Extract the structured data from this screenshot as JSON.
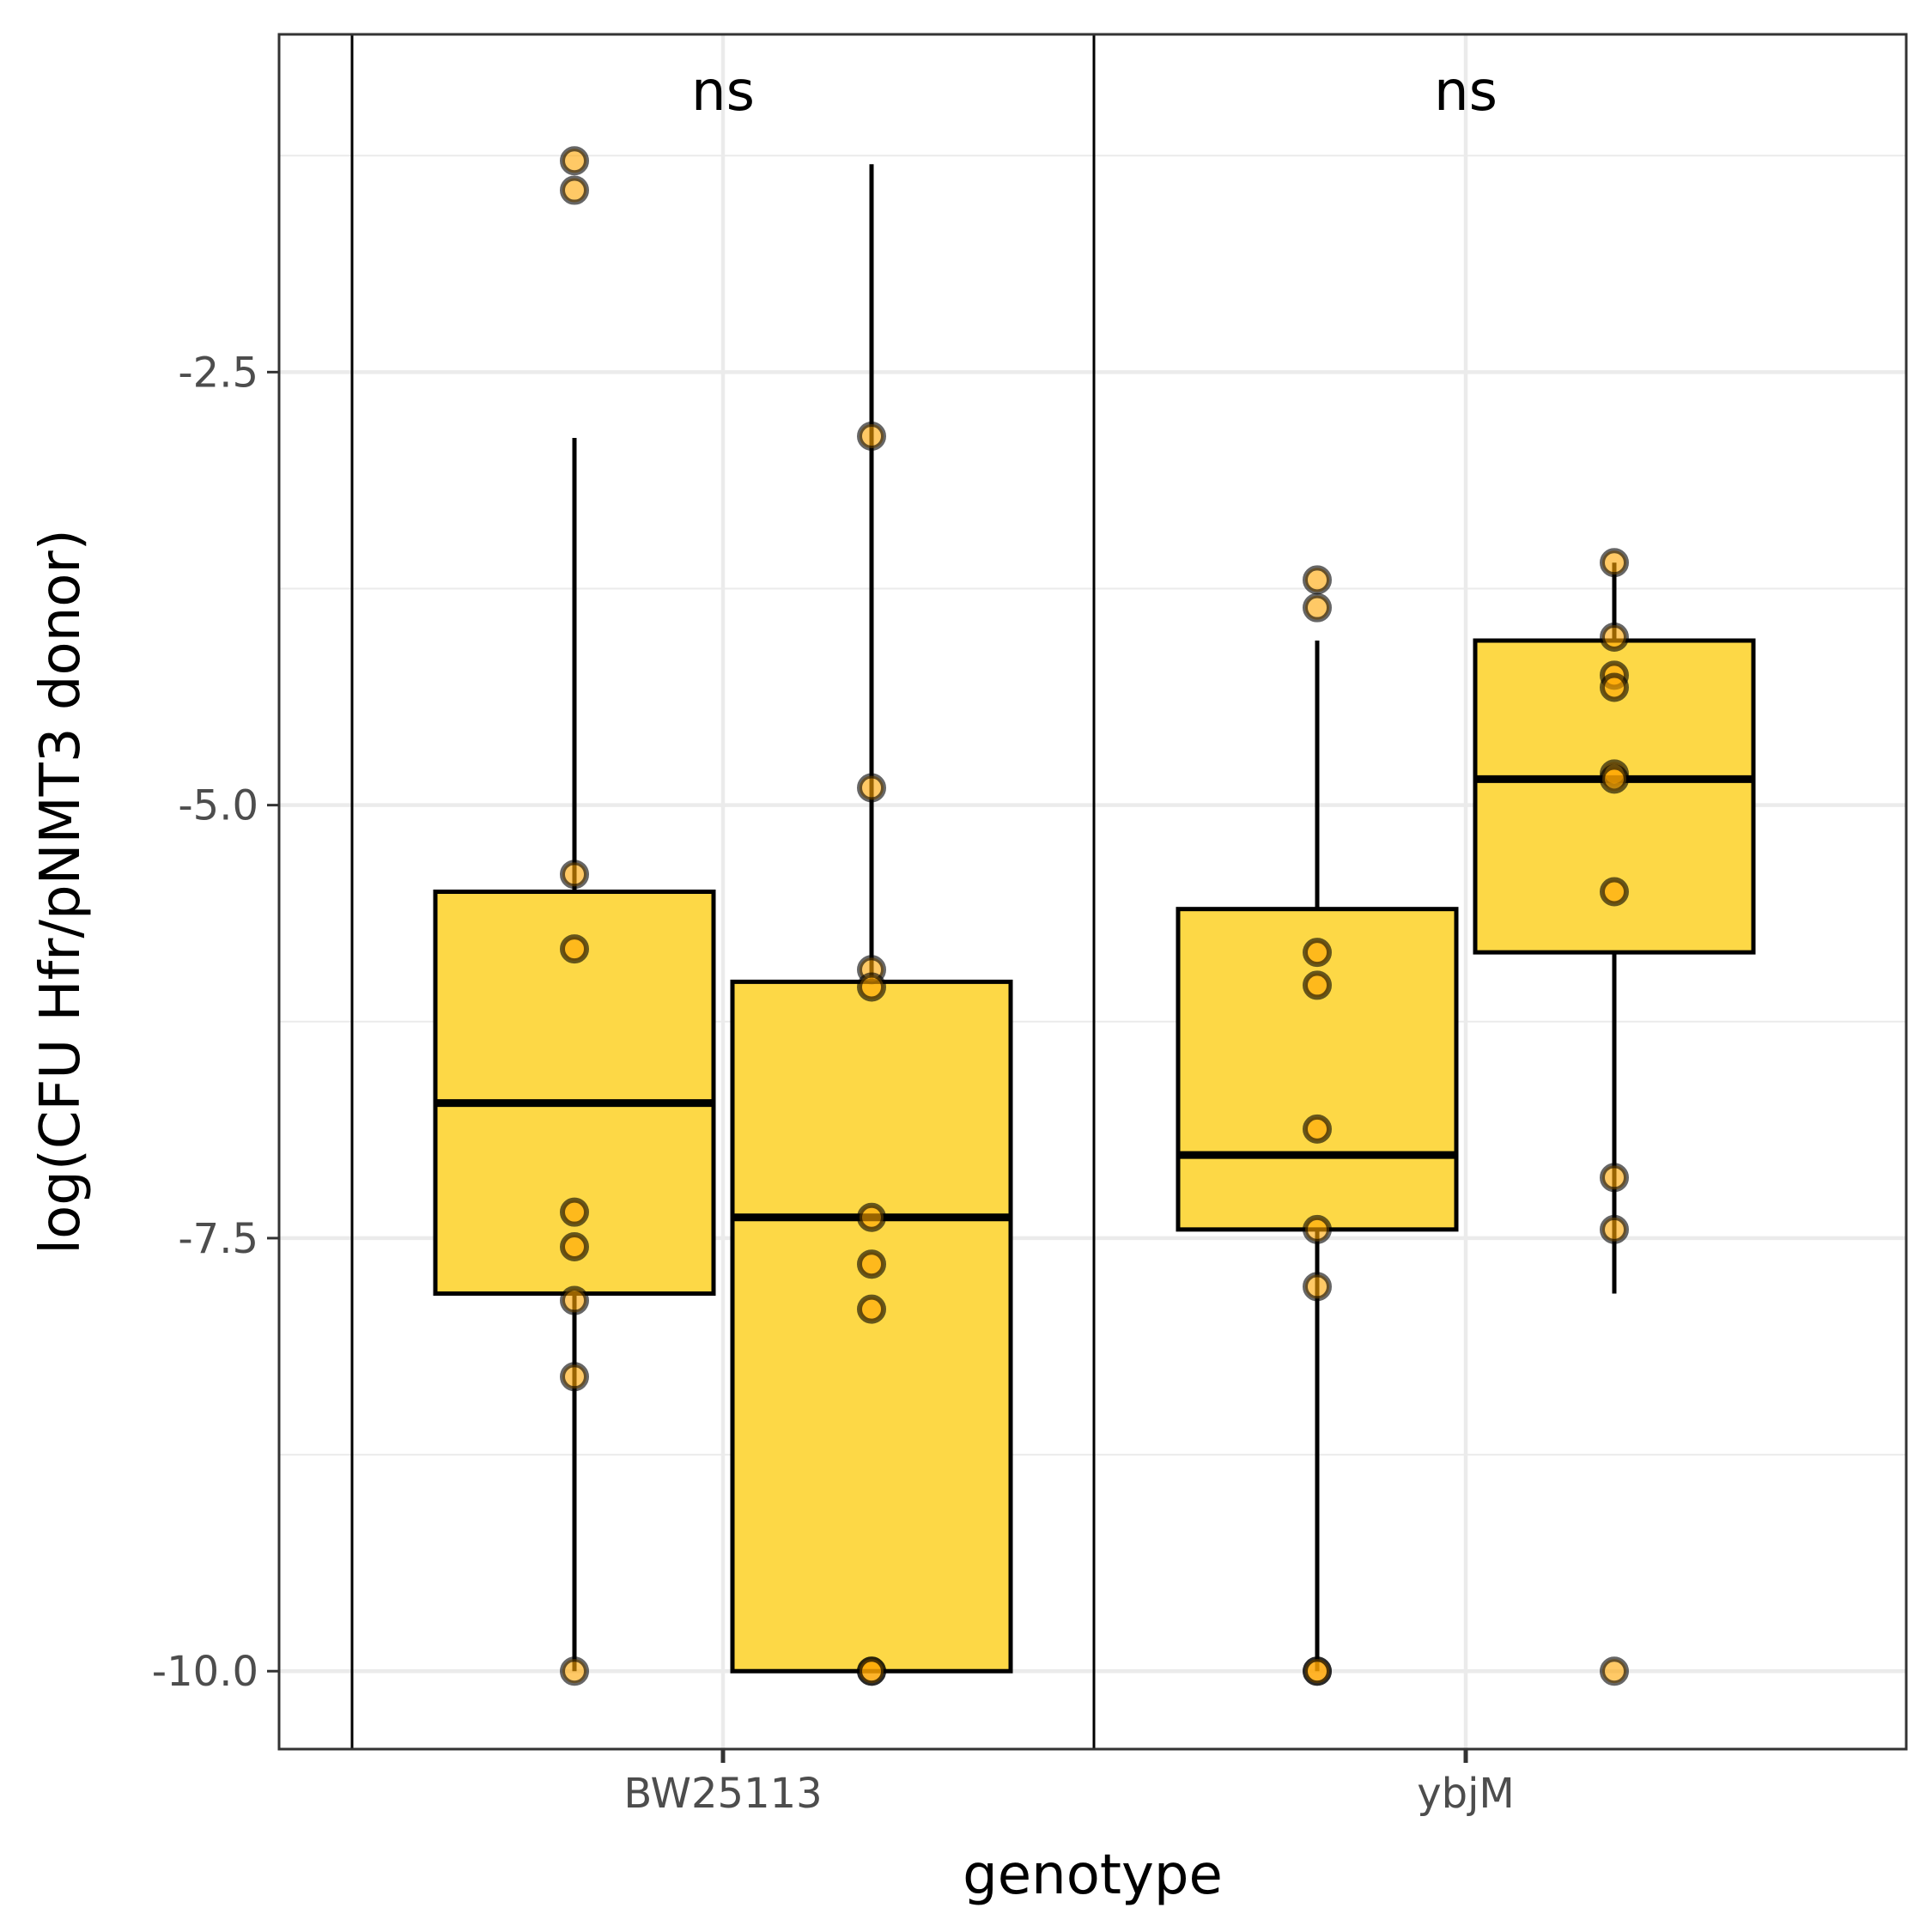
{
  "chart_data": {
    "type": "box",
    "xlabel": "genotype",
    "ylabel": "log(CFU Hfr/pNMT3 donor)",
    "categories": [
      "BW25113",
      "ybjM"
    ],
    "ylim": [
      -10.45,
      -0.55
    ],
    "yticks": [
      -2.5,
      -5.0,
      -7.5,
      -10.0
    ],
    "ytick_labels": [
      "-2.5",
      "-5.0",
      "-7.5",
      "-10.0"
    ],
    "grid": true,
    "annotations": [
      {
        "category": "BW25113",
        "text": "ns"
      },
      {
        "category": "ybjM",
        "text": "ns"
      }
    ],
    "colors": {
      "box_fill": "#FDD846",
      "box_outline": "#000000",
      "point_fill": "#FFA500",
      "point_outline": "#000000",
      "grid": "#EBEBEB",
      "panel_border": "#333333"
    },
    "boxes": [
      {
        "category": "BW25113",
        "group": 1,
        "whisker_low": -10.0,
        "q1": -7.82,
        "median": -6.72,
        "q3": -5.5,
        "whisker_high": -2.88
      },
      {
        "category": "BW25113",
        "group": 2,
        "whisker_low": -10.0,
        "q1": -10.0,
        "median": -7.38,
        "q3": -6.02,
        "whisker_high": -1.3
      },
      {
        "category": "ybjM",
        "group": 1,
        "whisker_low": -10.0,
        "q1": -7.45,
        "median": -7.02,
        "q3": -5.6,
        "whisker_high": -4.05
      },
      {
        "category": "ybjM",
        "group": 2,
        "whisker_low": -7.82,
        "q1": -5.85,
        "median": -4.85,
        "q3": -4.05,
        "whisker_high": -3.6
      }
    ],
    "points": [
      {
        "category": "BW25113",
        "group": 1,
        "values": [
          -1.28,
          -1.45,
          -5.4,
          -5.83,
          -7.35,
          -7.55,
          -7.86,
          -8.3,
          -10.0
        ]
      },
      {
        "category": "BW25113",
        "group": 2,
        "values": [
          -2.87,
          -4.9,
          -5.95,
          -6.05,
          -7.38,
          -7.65,
          -7.91,
          -10.0,
          -10.0
        ]
      },
      {
        "category": "ybjM",
        "group": 1,
        "values": [
          -3.7,
          -3.86,
          -5.85,
          -6.04,
          -6.87,
          -7.45,
          -7.78,
          -10.0,
          -10.0
        ]
      },
      {
        "category": "ybjM",
        "group": 2,
        "values": [
          -3.6,
          -4.03,
          -4.25,
          -4.32,
          -4.82,
          -4.85,
          -5.5,
          -7.15,
          -7.45,
          -10.0
        ]
      }
    ]
  }
}
